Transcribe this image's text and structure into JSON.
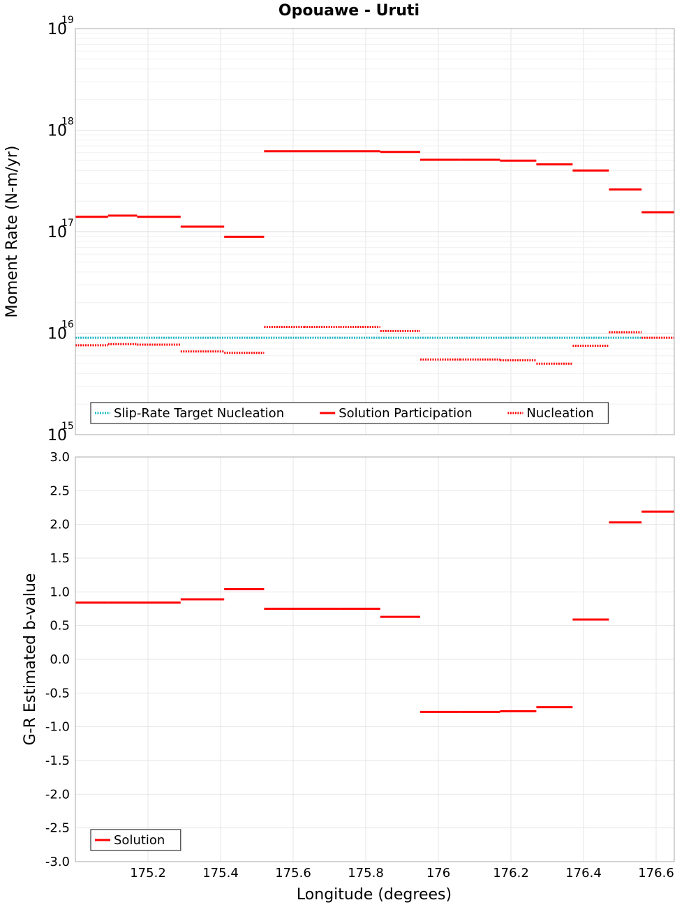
{
  "chart_data": {
    "title": "Opouawe - Uruti",
    "xlabel": "Longitude (degrees)",
    "xlim": [
      175.0,
      176.65
    ],
    "xticks": [
      175.2,
      175.4,
      175.6,
      175.8,
      176,
      176.2,
      176.4,
      176.6
    ],
    "xtick_labels": [
      "175.2",
      "175.4",
      "175.6",
      "175.8",
      "176",
      "176.2",
      "176.4",
      "176.6"
    ],
    "grid": true,
    "panels": [
      {
        "type": "line",
        "ylabel": "Moment Rate (N-m/yr)",
        "yscale": "log",
        "ylim": [
          1000000000000000.0,
          1e+19
        ],
        "yticks": [
          {
            "base": "10",
            "exp": "15",
            "value": 1000000000000000.0
          },
          {
            "base": "10",
            "exp": "16",
            "value": 1e+16
          },
          {
            "base": "10",
            "exp": "17",
            "value": 1e+17
          },
          {
            "base": "10",
            "exp": "18",
            "value": 1e+18
          },
          {
            "base": "10",
            "exp": "19",
            "value": 1e+19
          }
        ],
        "legend_position": "bottom-left",
        "series": [
          {
            "name": "Slip-Rate Target Nucleation",
            "style": "dotted",
            "color": "#1fb8c4",
            "segments": [
              [
                175.0,
                176.56,
                9000000000000000.0
              ]
            ]
          },
          {
            "name": "Solution Participation",
            "style": "solid",
            "color": "#ff0000",
            "segments": [
              [
                175.0,
                175.09,
                1.4e+17
              ],
              [
                175.09,
                175.17,
                1.44e+17
              ],
              [
                175.17,
                175.29,
                1.4e+17
              ],
              [
                175.29,
                175.41,
                1.12e+17
              ],
              [
                175.41,
                175.52,
                8.9e+16
              ],
              [
                175.52,
                175.63,
                6.2e+17
              ],
              [
                175.63,
                175.73,
                6.2e+17
              ],
              [
                175.73,
                175.84,
                6.2e+17
              ],
              [
                175.84,
                175.95,
                6.1e+17
              ],
              [
                175.95,
                176.06,
                5.1e+17
              ],
              [
                176.06,
                176.17,
                5.1e+17
              ],
              [
                176.17,
                176.27,
                5e+17
              ],
              [
                176.27,
                176.37,
                4.6e+17
              ],
              [
                176.37,
                176.47,
                4e+17
              ],
              [
                176.47,
                176.56,
                2.6e+17
              ],
              [
                176.56,
                176.65,
                1.55e+17
              ]
            ]
          },
          {
            "name": "Nucleation",
            "style": "dotted",
            "color": "#ff0000",
            "segments": [
              [
                175.0,
                175.09,
                7600000000000000.0
              ],
              [
                175.09,
                175.17,
                7800000000000000.0
              ],
              [
                175.17,
                175.29,
                7700000000000000.0
              ],
              [
                175.29,
                175.41,
                6600000000000000.0
              ],
              [
                175.41,
                175.52,
                6400000000000000.0
              ],
              [
                175.52,
                175.63,
                1.15e+16
              ],
              [
                175.63,
                175.73,
                1.15e+16
              ],
              [
                175.73,
                175.84,
                1.15e+16
              ],
              [
                175.84,
                175.95,
                1.05e+16
              ],
              [
                175.95,
                176.06,
                5500000000000000.0
              ],
              [
                176.06,
                176.17,
                5500000000000000.0
              ],
              [
                176.17,
                176.27,
                5400000000000000.0
              ],
              [
                176.27,
                176.37,
                5000000000000000.0
              ],
              [
                176.37,
                176.47,
                7500000000000000.0
              ],
              [
                176.47,
                176.56,
                1.02e+16
              ],
              [
                176.56,
                176.65,
                9000000000000000.0
              ]
            ]
          }
        ]
      },
      {
        "type": "line",
        "ylabel": "G-R Estimated b-value",
        "yscale": "linear",
        "ylim": [
          -3.0,
          3.0
        ],
        "yticks": [
          -3.0,
          -2.5,
          -2.0,
          -1.5,
          -1.0,
          -0.5,
          0.0,
          0.5,
          1.0,
          1.5,
          2.0,
          2.5,
          3.0
        ],
        "ytick_labels": [
          "-3.0",
          "-2.5",
          "-2.0",
          "-1.5",
          "-1.0",
          "-0.5",
          "0.0",
          "0.5",
          "1.0",
          "1.5",
          "2.0",
          "2.5",
          "3.0"
        ],
        "legend_position": "bottom-left",
        "series": [
          {
            "name": "Solution",
            "style": "solid",
            "color": "#ff0000",
            "segments": [
              [
                175.0,
                175.09,
                0.84
              ],
              [
                175.09,
                175.17,
                0.84
              ],
              [
                175.17,
                175.29,
                0.84
              ],
              [
                175.29,
                175.41,
                0.89
              ],
              [
                175.41,
                175.52,
                1.04
              ],
              [
                175.52,
                175.63,
                0.75
              ],
              [
                175.63,
                175.73,
                0.75
              ],
              [
                175.73,
                175.84,
                0.75
              ],
              [
                175.84,
                175.95,
                0.63
              ],
              [
                175.95,
                176.06,
                -0.78
              ],
              [
                176.06,
                176.17,
                -0.78
              ],
              [
                176.17,
                176.27,
                -0.77
              ],
              [
                176.27,
                176.37,
                -0.71
              ],
              [
                176.37,
                176.47,
                0.59
              ],
              [
                176.47,
                176.56,
                2.03
              ],
              [
                176.56,
                176.65,
                2.19
              ]
            ]
          }
        ]
      }
    ]
  }
}
